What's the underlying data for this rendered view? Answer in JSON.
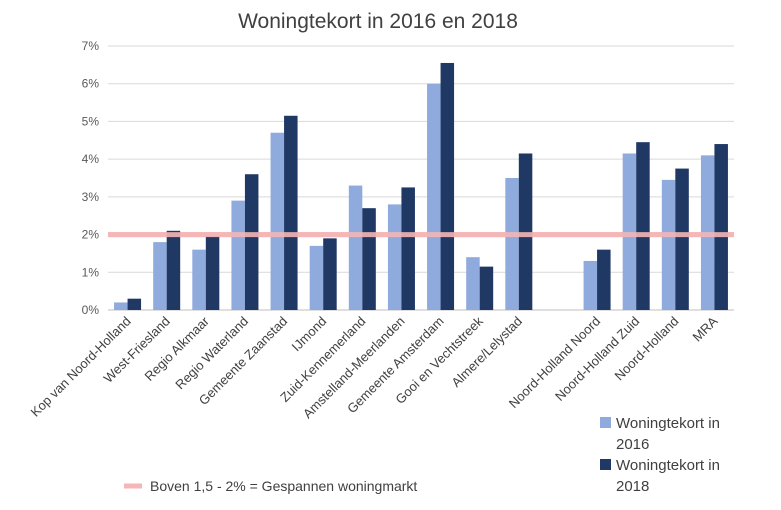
{
  "chart_data": {
    "type": "bar",
    "title": "Woningtekort in 2016 en 2018",
    "xlabel": "",
    "ylabel": "",
    "ylim": [
      0,
      7
    ],
    "yticks": [
      "0%",
      "1%",
      "2%",
      "3%",
      "4%",
      "5%",
      "6%",
      "7%"
    ],
    "categories": [
      "Kop van Noord-Holland",
      "West-Friesland",
      "Regio Alkmaar",
      "Regio Waterland",
      "Gemeente Zaanstad",
      "IJmond",
      "Zuid-Kennemerland",
      "Amstelland-Meerlanden",
      "Gemeente Amsterdam",
      "Gooi en Vechtstreek",
      "Almere/Lelystad",
      "",
      "Noord-Holland Noord",
      "Noord-Holland Zuid",
      "Noord-Holland",
      "MRA"
    ],
    "series": [
      {
        "name": "Woningtekort in 2016",
        "name_lines": [
          "Woningtekort in",
          "2016"
        ],
        "color": "#8faadc",
        "values": [
          0.2,
          1.8,
          1.6,
          2.9,
          4.7,
          1.7,
          3.3,
          2.8,
          6.0,
          1.4,
          3.5,
          null,
          1.3,
          4.15,
          3.45,
          4.1
        ]
      },
      {
        "name": "Woningtekort in 2018",
        "name_lines": [
          "Woningtekort in",
          "2018"
        ],
        "color": "#1f3864",
        "values": [
          0.3,
          2.1,
          1.95,
          3.6,
          5.15,
          1.9,
          2.7,
          3.25,
          6.55,
          1.15,
          4.15,
          null,
          1.6,
          4.45,
          3.75,
          4.4
        ]
      }
    ],
    "reference_line": {
      "value": 2.0,
      "label": "Boven 1,5 - 2% = Gespannen woningmarkt",
      "color": "#f4b6b6"
    },
    "grid": true,
    "legend_position": "bottom-right"
  }
}
